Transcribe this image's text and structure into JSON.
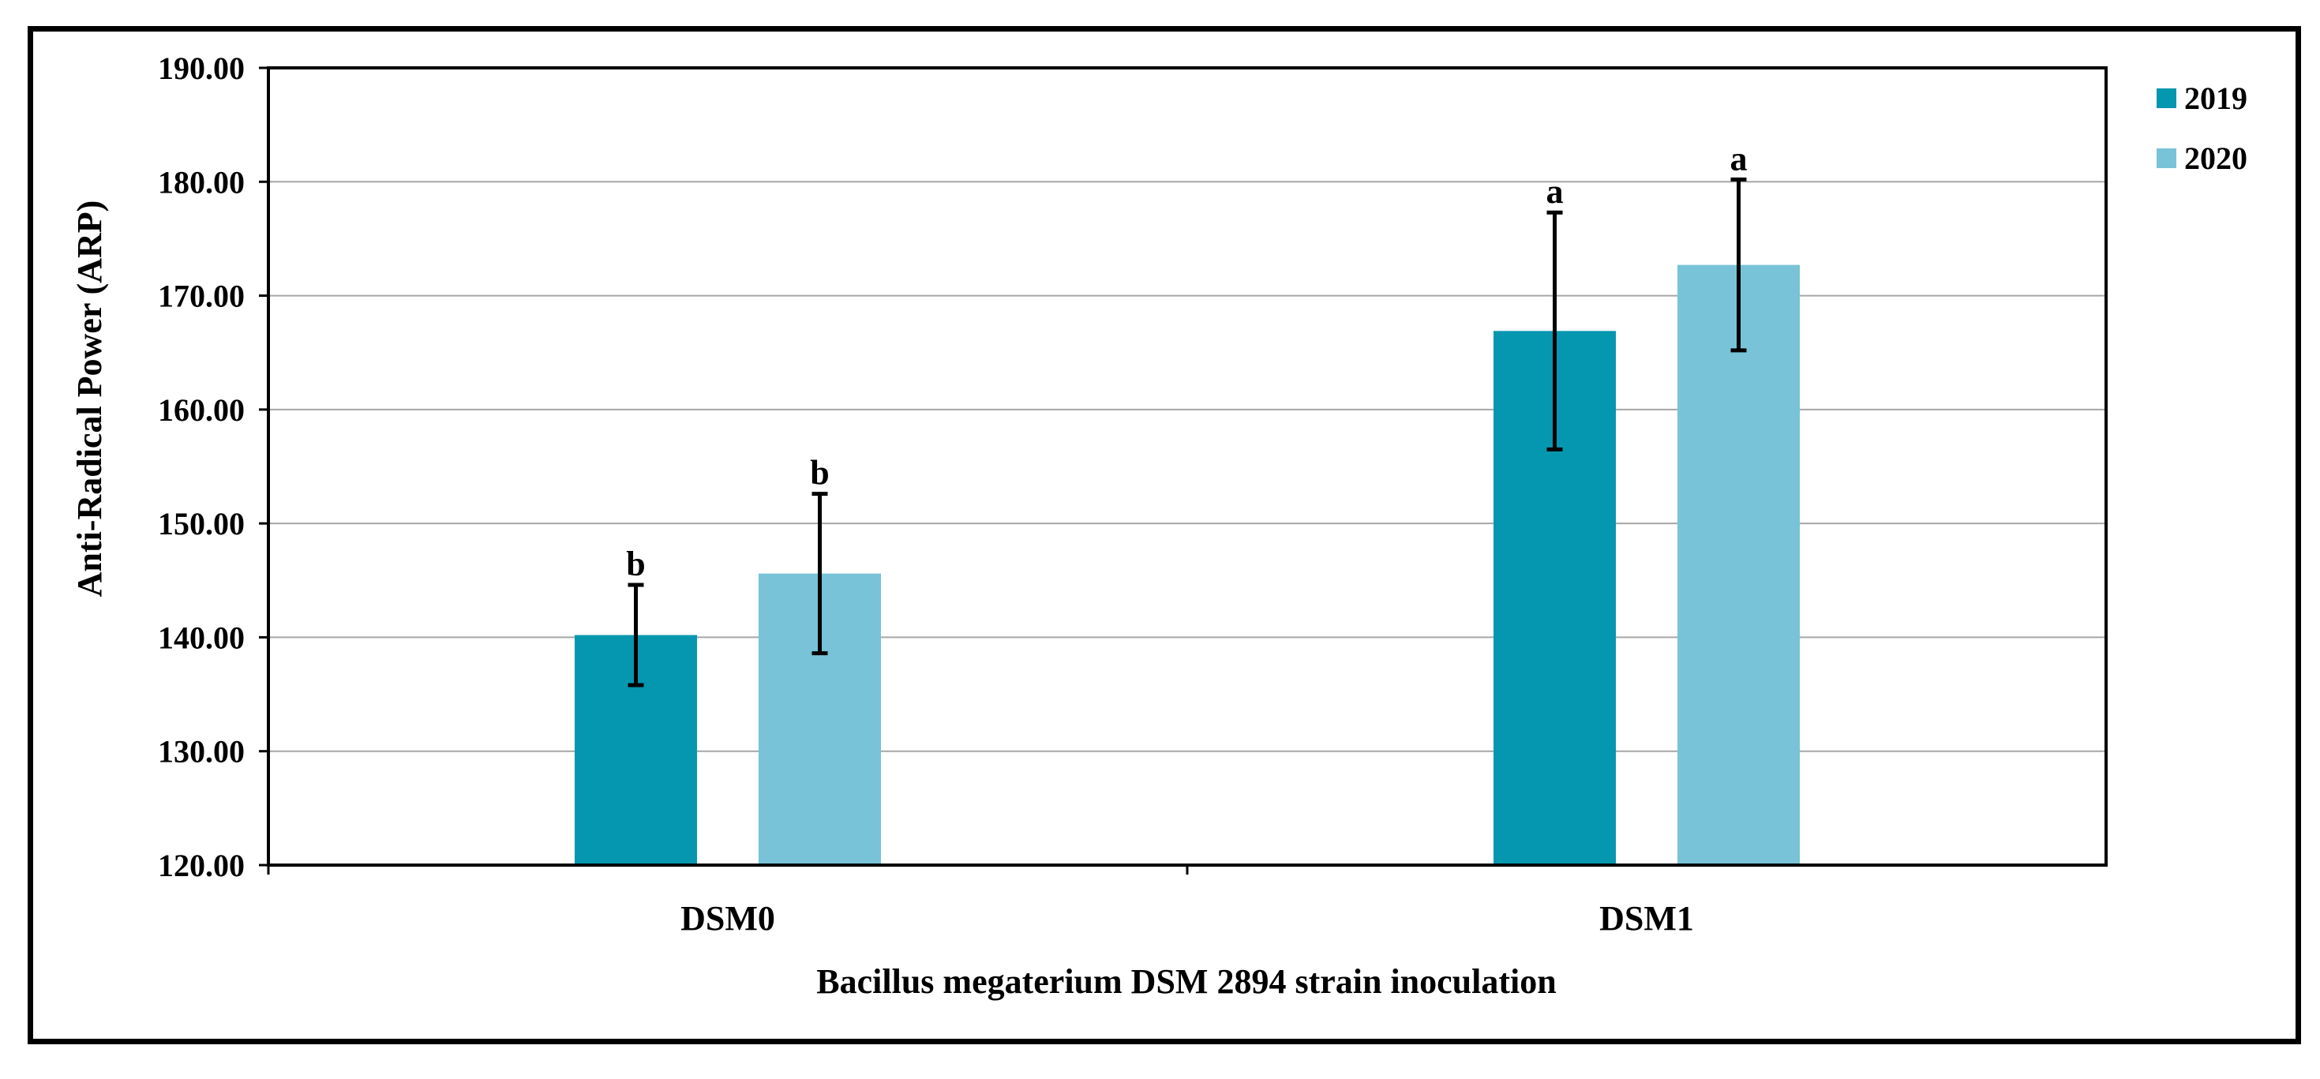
{
  "chart_data": {
    "type": "bar",
    "title": "",
    "xlabel": "Bacillus megaterium DSM 2894 strain inoculation",
    "ylabel": "Anti-Radical Power (ARP)",
    "ylim": [
      120,
      190
    ],
    "yticks": [
      "120.00",
      "130.00",
      "140.00",
      "150.00",
      "160.00",
      "170.00",
      "180.00",
      "190.00"
    ],
    "grid": true,
    "legend_position": "top-right",
    "categories": [
      "DSM0",
      "DSM1"
    ],
    "series": [
      {
        "name": "2019",
        "color": "#0597AF",
        "values": [
          140.2,
          166.9
        ],
        "errors": [
          4.4,
          10.4
        ],
        "letters": [
          "b",
          "a"
        ]
      },
      {
        "name": "2020",
        "color": "#78C3D7",
        "values": [
          145.6,
          172.7
        ],
        "errors": [
          7.0,
          7.5
        ],
        "letters": [
          "b",
          "a"
        ]
      }
    ]
  }
}
